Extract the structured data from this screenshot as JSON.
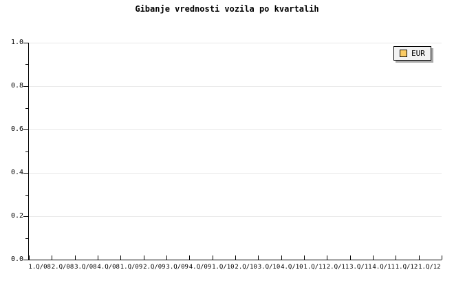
{
  "chart_data": {
    "type": "line",
    "title": "Gibanje vrednosti vozila po kvartalih",
    "categories": [
      "1.Q/08",
      "2.Q/08",
      "3.Q/08",
      "4.Q/08",
      "1.Q/09",
      "2.Q/09",
      "3.Q/09",
      "4.Q/09",
      "1.Q/10",
      "2.Q/10",
      "3.Q/10",
      "4.Q/10",
      "1.Q/11",
      "2.Q/11",
      "3.Q/11",
      "4.Q/11",
      "1.Q/12",
      "1.Q/12"
    ],
    "series": [
      {
        "name": "EUR",
        "color": "#facb64",
        "values": []
      }
    ],
    "xlabel": "",
    "ylabel": "",
    "ylim": [
      0,
      1
    ],
    "y_ticks": [
      0,
      0.2,
      0.4,
      0.6,
      0.8,
      1.0
    ],
    "y_tick_labels": [
      "0.0",
      "0.2",
      "0.4",
      "0.6",
      "0.8",
      "1.0"
    ],
    "y_minor_ticks": [
      0.1,
      0.3,
      0.5,
      0.7,
      0.9
    ],
    "grid": true,
    "legend": {
      "position": "top-right",
      "label": "EUR"
    },
    "colors": {
      "grid": "#e8e8e8",
      "axis": "#000000",
      "text": "#000000",
      "background": "#ffffff",
      "legend_bg": "#f2f2f2",
      "legend_shadow": "#aaaaaa",
      "swatch": "#facb64"
    }
  }
}
